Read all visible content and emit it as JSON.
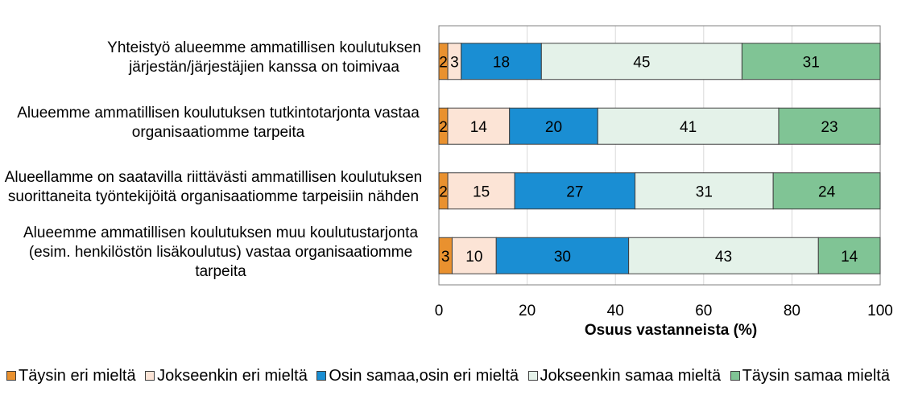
{
  "chart_data": {
    "type": "bar",
    "orientation": "horizontal",
    "stacked": true,
    "categories": [
      "Yhteistyö alueemme ammatillisen koulutuksen järjestän/järjestäjien kanssa on toimivaa",
      "Alueemme ammatillisen koulutuksen tutkintotarjonta vastaa organisaatiomme tarpeita",
      "Alueellamme on saatavilla riittävästi ammatillisen koulutuksen suorittaneita työntekijöitä organisaatiomme tarpeisiin nähden",
      "Alueemme ammatillisen koulutuksen muu koulutustarjonta (esim. henkilöstön lisäkoulutus) vastaa organisaatiomme tarpeita"
    ],
    "series": [
      {
        "name": "Täysin eri mieltä",
        "color": "#E9912F",
        "values": [
          2,
          2,
          2,
          3
        ]
      },
      {
        "name": "Jokseenkin eri mieltä",
        "color": "#FCE4D6",
        "values": [
          3,
          14,
          15,
          10
        ]
      },
      {
        "name": "Osin samaa,osin eri mieltä",
        "color": "#1A8ED3",
        "values": [
          18,
          20,
          27,
          30
        ]
      },
      {
        "name": "Jokseenkin samaa mieltä",
        "color": "#E4F2E9",
        "values": [
          45,
          41,
          31,
          43
        ]
      },
      {
        "name": "Täysin samaa mieltä",
        "color": "#80C495",
        "values": [
          31,
          23,
          24,
          14
        ]
      }
    ],
    "xlabel": "Osuus vastanneista (%)",
    "xlim": [
      0,
      100
    ],
    "xticks": [
      0,
      20,
      40,
      60,
      80,
      100
    ],
    "grid": true,
    "data_labels": true,
    "legend_position": "bottom"
  }
}
